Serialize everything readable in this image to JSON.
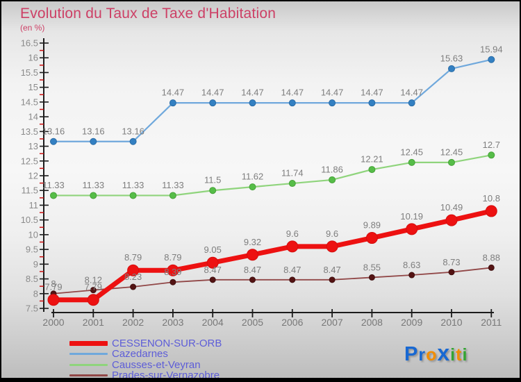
{
  "chart_data": {
    "type": "line",
    "title": "Evolution du Taux de Taxe d'Habitation",
    "subtitle": "(en %)",
    "title_color": "#cd4066",
    "xlabel": "",
    "ylabel": "(en %)",
    "x": [
      2000,
      2001,
      2002,
      2003,
      2004,
      2005,
      2006,
      2007,
      2008,
      2009,
      2010,
      2011
    ],
    "ylim": [
      7.5,
      16.5
    ],
    "y_major_step": 0.5,
    "y_minor_step": 0.25,
    "grid": false,
    "legend_position": "bottom-left",
    "axis_color": "#1c1c1c",
    "tick_label_color": "#8a8a8a",
    "year_label_color": "#787878",
    "minor_tick_color": "#cc1111",
    "value_label_color": "#7e7e7e",
    "series": [
      {
        "name": "CESSENON-SUR-ORB",
        "line_color": "#ed1111",
        "dot_color": "#ed1111",
        "dot_stroke": "#d40e0e",
        "line_width": 7,
        "dot_radius": 8,
        "values": [
          7.79,
          7.79,
          8.79,
          8.79,
          9.05,
          9.32,
          9.6,
          9.6,
          9.89,
          10.19,
          10.49,
          10.8
        ],
        "labels": [
          "7.79",
          "7.79",
          "8.79",
          "8.79",
          "9.05",
          "9.32",
          "9.6",
          "9.6",
          "9.89",
          "10.19",
          "10.49",
          "10.8"
        ]
      },
      {
        "name": "Cazedarnes",
        "line_color": "#6fa8dc",
        "dot_color": "#3380c2",
        "dot_stroke": "#2a6ca6",
        "line_width": 2.2,
        "dot_radius": 4.5,
        "values": [
          13.16,
          13.16,
          13.16,
          14.47,
          14.47,
          14.47,
          14.47,
          14.47,
          14.47,
          14.47,
          15.63,
          15.94
        ],
        "labels": [
          "13.16",
          "13.16",
          "13.16",
          "14.47",
          "14.47",
          "14.47",
          "14.47",
          "14.47",
          "14.47",
          "14.47",
          "15.63",
          "15.94"
        ]
      },
      {
        "name": "Causses-et-Veyran",
        "line_color": "#8fd47c",
        "dot_color": "#56bd48",
        "dot_stroke": "#46a238",
        "line_width": 2.2,
        "dot_radius": 4.5,
        "values": [
          11.33,
          11.33,
          11.33,
          11.33,
          11.5,
          11.62,
          11.74,
          11.86,
          12.21,
          12.45,
          12.45,
          12.7
        ],
        "labels": [
          "11.33",
          "11.33",
          "11.33",
          "11.33",
          "11.5",
          "11.62",
          "11.74",
          "11.86",
          "12.21",
          "12.45",
          "12.45",
          "12.7"
        ]
      },
      {
        "name": "Prades-sur-Vernazobre",
        "line_color": "#914747",
        "dot_color": "#541313",
        "dot_stroke": "#401010",
        "line_width": 1.8,
        "dot_radius": 4,
        "values": [
          8,
          8.12,
          8.23,
          8.39,
          8.47,
          8.47,
          8.47,
          8.47,
          8.55,
          8.63,
          8.73,
          8.88
        ],
        "labels": [
          "8",
          "8.12",
          "8.23",
          "8.39",
          "8.47",
          "8.47",
          "8.47",
          "8.47",
          "8.55",
          "8.63",
          "8.73",
          "8.88"
        ]
      }
    ]
  },
  "legend": {
    "label_color": "#5d5dd8"
  },
  "logo": {
    "name": "Proxiti",
    "letters": [
      {
        "ch": "P",
        "color": "#1868d2",
        "size": 29
      },
      {
        "ch": "r",
        "color": "#1868d2",
        "size": 25
      },
      {
        "ch": "o",
        "color": "#f28d00",
        "size": 25
      },
      {
        "ch": "x",
        "color": "#1868d2",
        "size": 32
      },
      {
        "ch": "i",
        "color": "#33a532",
        "size": 25
      },
      {
        "ch": "t",
        "color": "#f28d00",
        "size": 25
      },
      {
        "ch": "i",
        "color": "#33a532",
        "size": 25
      }
    ]
  }
}
